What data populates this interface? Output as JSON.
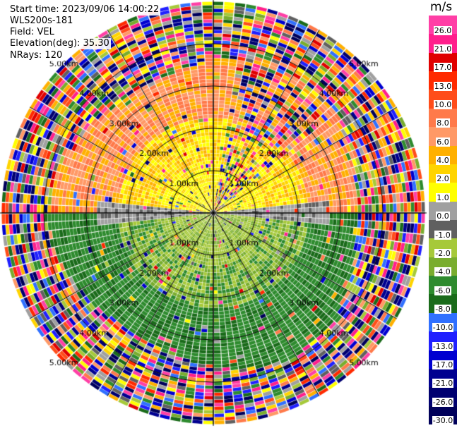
{
  "info": {
    "start_time": "Start time: 2023/09/06 14:00:22",
    "site": "WLS200s-181",
    "field": "Field: VEL",
    "elevation": "Elevation(deg): 35.30",
    "nrays": "NRays: 120"
  },
  "colorbar": {
    "unit": "m/s",
    "ticks": [
      "26.0",
      "21.0",
      "17.0",
      "13.0",
      "10.0",
      "8.0",
      "6.0",
      "4.0",
      "2.0",
      "1.0",
      "0.0",
      "-1.0",
      "-2.0",
      "-4.0",
      "-6.0",
      "-8.0",
      "-10.0",
      "-13.0",
      "-17.0",
      "-21.0",
      "-26.0",
      "-30.0"
    ],
    "colors": [
      "#ff3fa6",
      "#ff1f8c",
      "#e00000",
      "#ff2a00",
      "#ff4d1a",
      "#ff7a4a",
      "#ff9966",
      "#ffb000",
      "#ffd400",
      "#ffff00",
      "#a0a0a0",
      "#606060",
      "#a6c93a",
      "#79ad2e",
      "#2e8b2e",
      "#1a6b1a",
      "#3070ff",
      "#2020ff",
      "#0000d0",
      "#000090",
      "#000070",
      "#00005a"
    ]
  },
  "rings": {
    "labels": [
      "1.00km",
      "2.00km",
      "3.00km",
      "4.00km",
      "5.00km"
    ]
  }
}
